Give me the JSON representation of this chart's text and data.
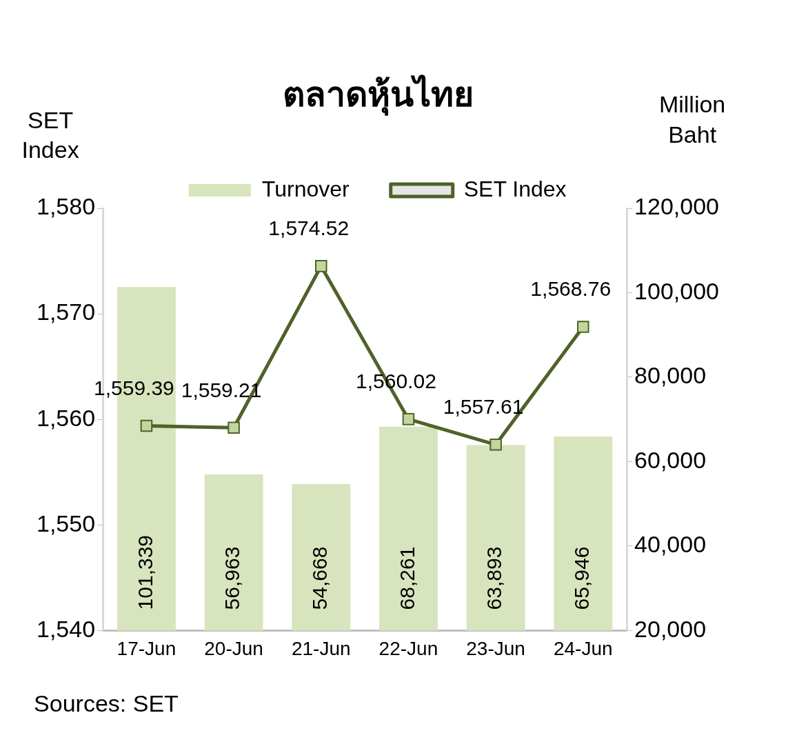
{
  "chart_data": {
    "type": "bar",
    "title": "ตลาดหุ้นไทย",
    "ylabel": "SET Index",
    "y2label": "Million Baht",
    "categories": [
      "17-Jun",
      "20-Jun",
      "21-Jun",
      "22-Jun",
      "23-Jun",
      "24-Jun"
    ],
    "series": [
      {
        "name": "Turnover",
        "axis": "y2",
        "color": "#d7e4bd",
        "values": [
          101339,
          56963,
          54668,
          68261,
          63893,
          65946
        ],
        "value_labels": [
          "101,339",
          "56,963",
          "54,668",
          "68,261",
          "63,893",
          "65,946"
        ]
      },
      {
        "name": "SET Index",
        "type": "line",
        "axis": "y",
        "color": "#4f6228",
        "marker": "square",
        "values": [
          1559.39,
          1559.21,
          1574.52,
          1560.02,
          1557.61,
          1568.76
        ],
        "value_labels": [
          "1,559.39",
          "1,559.21",
          "1,574.52",
          "1,560.02",
          "1,557.61",
          "1,568.76"
        ]
      }
    ],
    "ylim": [
      1540,
      1580
    ],
    "yticks": [
      {
        "value": 1540,
        "label": "1,540"
      },
      {
        "value": 1550,
        "label": "1,550"
      },
      {
        "value": 1560,
        "label": "1,560"
      },
      {
        "value": 1570,
        "label": "1,570"
      },
      {
        "value": 1580,
        "label": "1,580"
      }
    ],
    "y2lim": [
      20000,
      120000
    ],
    "y2ticks": [
      {
        "value": 20000,
        "label": "20,000"
      },
      {
        "value": 40000,
        "label": "40,000"
      },
      {
        "value": 60000,
        "label": "60,000"
      },
      {
        "value": 80000,
        "label": "80,000"
      },
      {
        "value": 100000,
        "label": "100,000"
      },
      {
        "value": 120000,
        "label": "120,000"
      }
    ],
    "legend": "top",
    "grid": false,
    "annotations": [
      "Sources: SET"
    ]
  }
}
